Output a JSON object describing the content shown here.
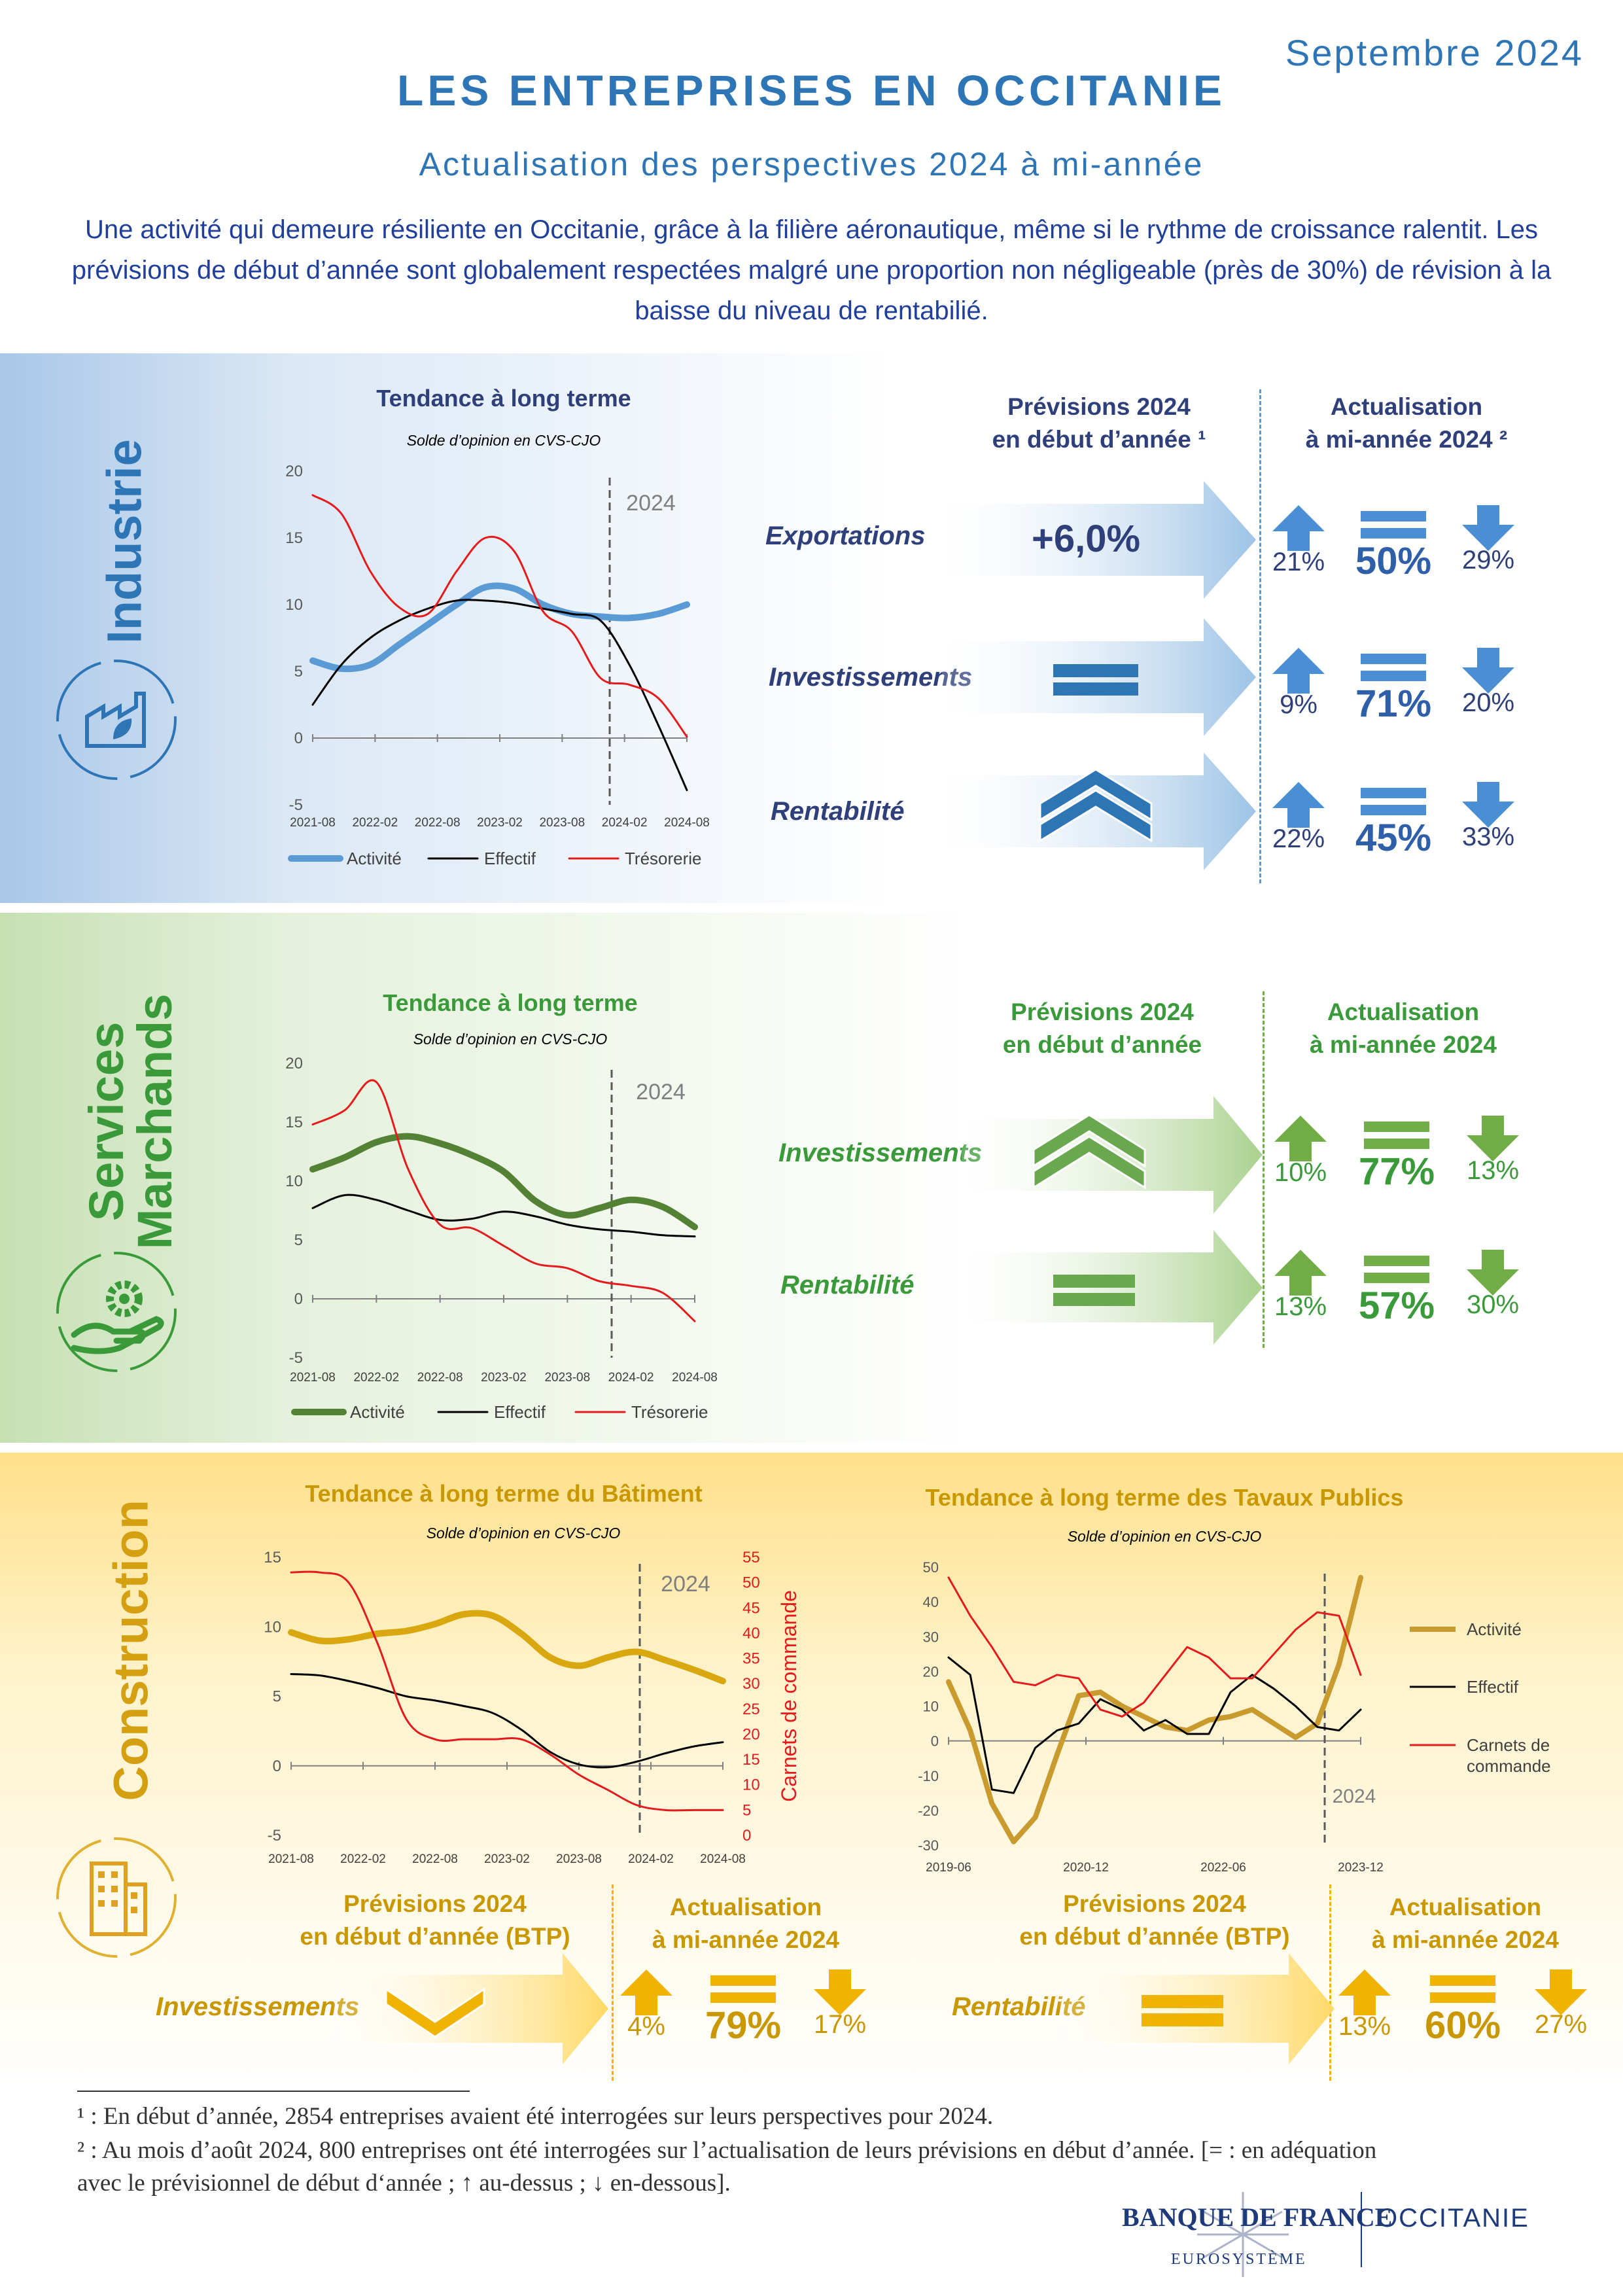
{
  "header": {
    "date": "Septembre 2024",
    "title": "LES ENTREPRISES EN OCCITANIE",
    "subtitle": "Actualisation des perspectives 2024 à mi-année",
    "intro": "Une activité qui demeure résiliente en Occitanie, grâce à la filière aéronautique, même si le rythme de croissance ralentit. Les prévisions de début d’année sont globalement respectées malgré une proportion non négligeable (près de 30%) de révision à la baisse du niveau de rentabilié."
  },
  "colors": {
    "blue": "#2e75b6",
    "dark_blue": "#203f9a",
    "green": "#3a9a3a",
    "dark_green": "#2e7a2e",
    "gold": "#d4a012",
    "orange_title": "#c99700",
    "red": "#e41a1c",
    "black": "#000000",
    "industry_activity": "#5b9bd5",
    "services_activity": "#548235",
    "construction_activity": "#d9a810",
    "tp_activity": "#c99a2e"
  },
  "icons": {
    "industry": "factory-leaf-icon",
    "services": "gear-hand-icon",
    "construction": "building-icon",
    "up": "arrow-up-icon",
    "equal": "equal-icon",
    "down": "arrow-down-icon",
    "chevron_up": "double-chevron-up-icon",
    "chevron_down": "chevron-down-icon"
  },
  "industry": {
    "label": "Industrie",
    "chart_title": "Tendance à long terme",
    "chart_subtitle": "Solde d’opinion en CVS-CJO",
    "hdr_prev_line1": "Prévisions 2024",
    "hdr_prev_line2": "en début d’année ¹",
    "hdr_act_line1": "Actualisation",
    "hdr_act_line2": "à mi-année 2024 ²",
    "rows": [
      {
        "label": "Exportations",
        "forecast": "+6,0%",
        "up": "21%",
        "equal": "50%",
        "down": "29%"
      },
      {
        "label": "Investissements",
        "forecast_icon": "equal-icon",
        "up": "9%",
        "equal": "71%",
        "down": "20%"
      },
      {
        "label": "Rentabilité",
        "forecast_icon": "double-chevron-up-icon",
        "up": "22%",
        "equal": "45%",
        "down": "33%"
      }
    ]
  },
  "services": {
    "label_line1": "Services",
    "label_line2": "Marchands",
    "chart_title": "Tendance à long terme",
    "chart_subtitle": "Solde d’opinion en CVS-CJO",
    "hdr_prev_line1": "Prévisions 2024",
    "hdr_prev_line2": "en début d’année",
    "hdr_act_line1": "Actualisation",
    "hdr_act_line2": "à mi-année 2024",
    "rows": [
      {
        "label": "Investissements",
        "forecast_icon": "double-chevron-up-icon",
        "up": "10%",
        "equal": "77%",
        "down": "13%"
      },
      {
        "label": "Rentabilité",
        "forecast_icon": "equal-icon",
        "up": "13%",
        "equal": "57%",
        "down": "30%"
      }
    ]
  },
  "construction": {
    "label": "Construction",
    "batiment_title": "Tendance à long terme du Bâtiment",
    "batiment_subtitle": "Solde d’opinion en CVS-CJO",
    "tp_title": "Tendance à long terme des Tavaux Publics",
    "tp_subtitle": "Solde d’opinion en CVS-CJO",
    "left_hdr_prev_line1": "Prévisions 2024",
    "left_hdr_prev_line2": "en début d’année  (BTP)",
    "left_hdr_act_line1": "Actualisation",
    "left_hdr_act_line2": "à mi-année 2024",
    "right_hdr_prev_line1": "Prévisions 2024",
    "right_hdr_prev_line2": "en début d’année (BTP)",
    "right_hdr_act_line1": "Actualisation",
    "right_hdr_act_line2": "à mi-année 2024",
    "invest": {
      "label": "Investissements",
      "forecast_icon": "chevron-down-icon",
      "up": "4%",
      "equal": "79%",
      "down": "17%"
    },
    "rentab": {
      "label": "Rentabilité",
      "forecast_icon": "equal-icon",
      "up": "13%",
      "equal": "60%",
      "down": "27%"
    }
  },
  "footnotes": {
    "line1": "¹ : En début d’année, 2854 entreprises avaient été interrogées sur leurs perspectives pour 2024.",
    "line2": "² : Au mois d’août 2024, 800 entreprises ont été interrogées sur l’actualisation de leurs prévisions en début d’année. [= : en adéquation",
    "line3": "avec le prévisionnel de début d‘année ; ↑ au-dessus ; ↓ en-dessous]."
  },
  "logo": {
    "bank": "BANQUE DE FRANCE",
    "region": "OCCITANIE",
    "sub": "EUROSYSTÈME"
  },
  "chart_data": [
    {
      "id": "industry",
      "type": "line",
      "title": "Tendance à long terme",
      "subtitle": "Solde d’opinion en CVS-CJO",
      "x_ticks": [
        "2021-08",
        "2022-02",
        "2022-08",
        "2023-02",
        "2023-08",
        "2024-02",
        "2024-08"
      ],
      "ylim": [
        -5,
        20
      ],
      "y_ticks": [
        -5,
        0,
        5,
        10,
        15,
        20
      ],
      "annotation": "2024",
      "legend": "bottom",
      "series": [
        {
          "name": "Activité",
          "values": [
            5.8,
            5.2,
            5.5,
            7,
            8.5,
            10,
            11.3,
            11.2,
            10,
            9.3,
            9.1,
            9.0,
            9.3,
            10.0
          ]
        },
        {
          "name": "Effectif",
          "values": [
            2.5,
            5.5,
            7.5,
            8.8,
            9.7,
            10.3,
            10.3,
            10.1,
            9.7,
            9.3,
            8.8,
            5.5,
            1.0,
            -3.9
          ]
        },
        {
          "name": "Trésorerie",
          "values": [
            18.2,
            16.8,
            12.5,
            9.8,
            9.3,
            12.5,
            15.0,
            14.0,
            9.5,
            8.0,
            4.5,
            4.0,
            3.0,
            0.1
          ]
        }
      ]
    },
    {
      "id": "services",
      "type": "line",
      "title": "Tendance à long terme",
      "subtitle": "Solde d’opinion en CVS-CJO",
      "x_ticks": [
        "2021-08",
        "2022-02",
        "2022-08",
        "2023-02",
        "2023-08",
        "2024-02",
        "2024-08"
      ],
      "ylim": [
        -5,
        20
      ],
      "y_ticks": [
        -5,
        0,
        5,
        10,
        15,
        20
      ],
      "annotation": "2024",
      "legend": "bottom",
      "series": [
        {
          "name": "Activité",
          "values": [
            11.0,
            12.0,
            13.3,
            13.8,
            13.2,
            12.2,
            10.8,
            8.3,
            7.1,
            7.7,
            8.4,
            7.8,
            6.1
          ]
        },
        {
          "name": "Effectif",
          "values": [
            7.7,
            8.8,
            8.4,
            7.5,
            6.7,
            6.8,
            7.4,
            7.0,
            6.3,
            5.9,
            5.7,
            5.4,
            5.3
          ]
        },
        {
          "name": "Trésorerie",
          "values": [
            14.8,
            16.0,
            18.4,
            11.0,
            6.3,
            6.0,
            4.5,
            3.0,
            2.6,
            1.5,
            1.1,
            0.5,
            -1.9
          ]
        }
      ]
    },
    {
      "id": "batiment",
      "type": "line",
      "title": "Tendance à long terme du Bâtiment",
      "subtitle": "Solde d’opinion en CVS-CJO",
      "x_ticks": [
        "2021-08",
        "2022-02",
        "2022-08",
        "2023-02",
        "2023-08",
        "2024-02",
        "2024-08"
      ],
      "ylim": [
        -5,
        15
      ],
      "y_ticks": [
        -5,
        0,
        5,
        10,
        15
      ],
      "y2label": "Carnets de commande",
      "y2lim": [
        0,
        55
      ],
      "y2_ticks": [
        0,
        5,
        10,
        15,
        20,
        25,
        30,
        35,
        40,
        45,
        50,
        55
      ],
      "annotation": "2024",
      "series": [
        {
          "name": "Activité",
          "axis": "left",
          "values": [
            9.6,
            9.0,
            9.1,
            9.5,
            9.7,
            10.2,
            10.9,
            10.8,
            9.5,
            7.8,
            7.2,
            7.8,
            8.2,
            7.6,
            6.9,
            6.1
          ]
        },
        {
          "name": "Effectif",
          "axis": "left",
          "values": [
            6.6,
            6.5,
            6.1,
            5.6,
            5.0,
            4.7,
            4.3,
            3.8,
            2.6,
            1.0,
            0.1,
            -0.1,
            0.3,
            0.9,
            1.4,
            1.7
          ]
        },
        {
          "name": "Carnets de commande",
          "axis": "right",
          "values": [
            52,
            52,
            50,
            38,
            23,
            19,
            19,
            19,
            19,
            16,
            12,
            9,
            6,
            5,
            5,
            5
          ]
        }
      ]
    },
    {
      "id": "travaux-publics",
      "type": "line",
      "title": "Tendance à long terme des Tavaux Publics",
      "subtitle": "Solde d’opinion en CVS-CJO",
      "x_ticks": [
        "2019-06",
        "2020-12",
        "2022-06",
        "2023-12"
      ],
      "ylim": [
        -30,
        50
      ],
      "y_ticks": [
        -30,
        -20,
        -10,
        0,
        10,
        20,
        30,
        40,
        50
      ],
      "annotation": "2024",
      "legend": "right",
      "series": [
        {
          "name": "Activité",
          "values": [
            17,
            3,
            -18,
            -29,
            -22,
            -4,
            13,
            14,
            10,
            7,
            4,
            3,
            6,
            7,
            9,
            5,
            1,
            5,
            22,
            47
          ]
        },
        {
          "name": "Effectif",
          "values": [
            24,
            19,
            -14,
            -15,
            -2,
            3,
            5,
            12,
            9,
            3,
            6,
            2,
            2,
            14,
            19,
            15,
            10,
            4,
            3,
            9
          ]
        },
        {
          "name": "Carnets de commande",
          "values": [
            47,
            36,
            27,
            17,
            16,
            19,
            18,
            9,
            7,
            11,
            19,
            27,
            24,
            18,
            18,
            25,
            32,
            37,
            36,
            19
          ]
        }
      ]
    }
  ]
}
